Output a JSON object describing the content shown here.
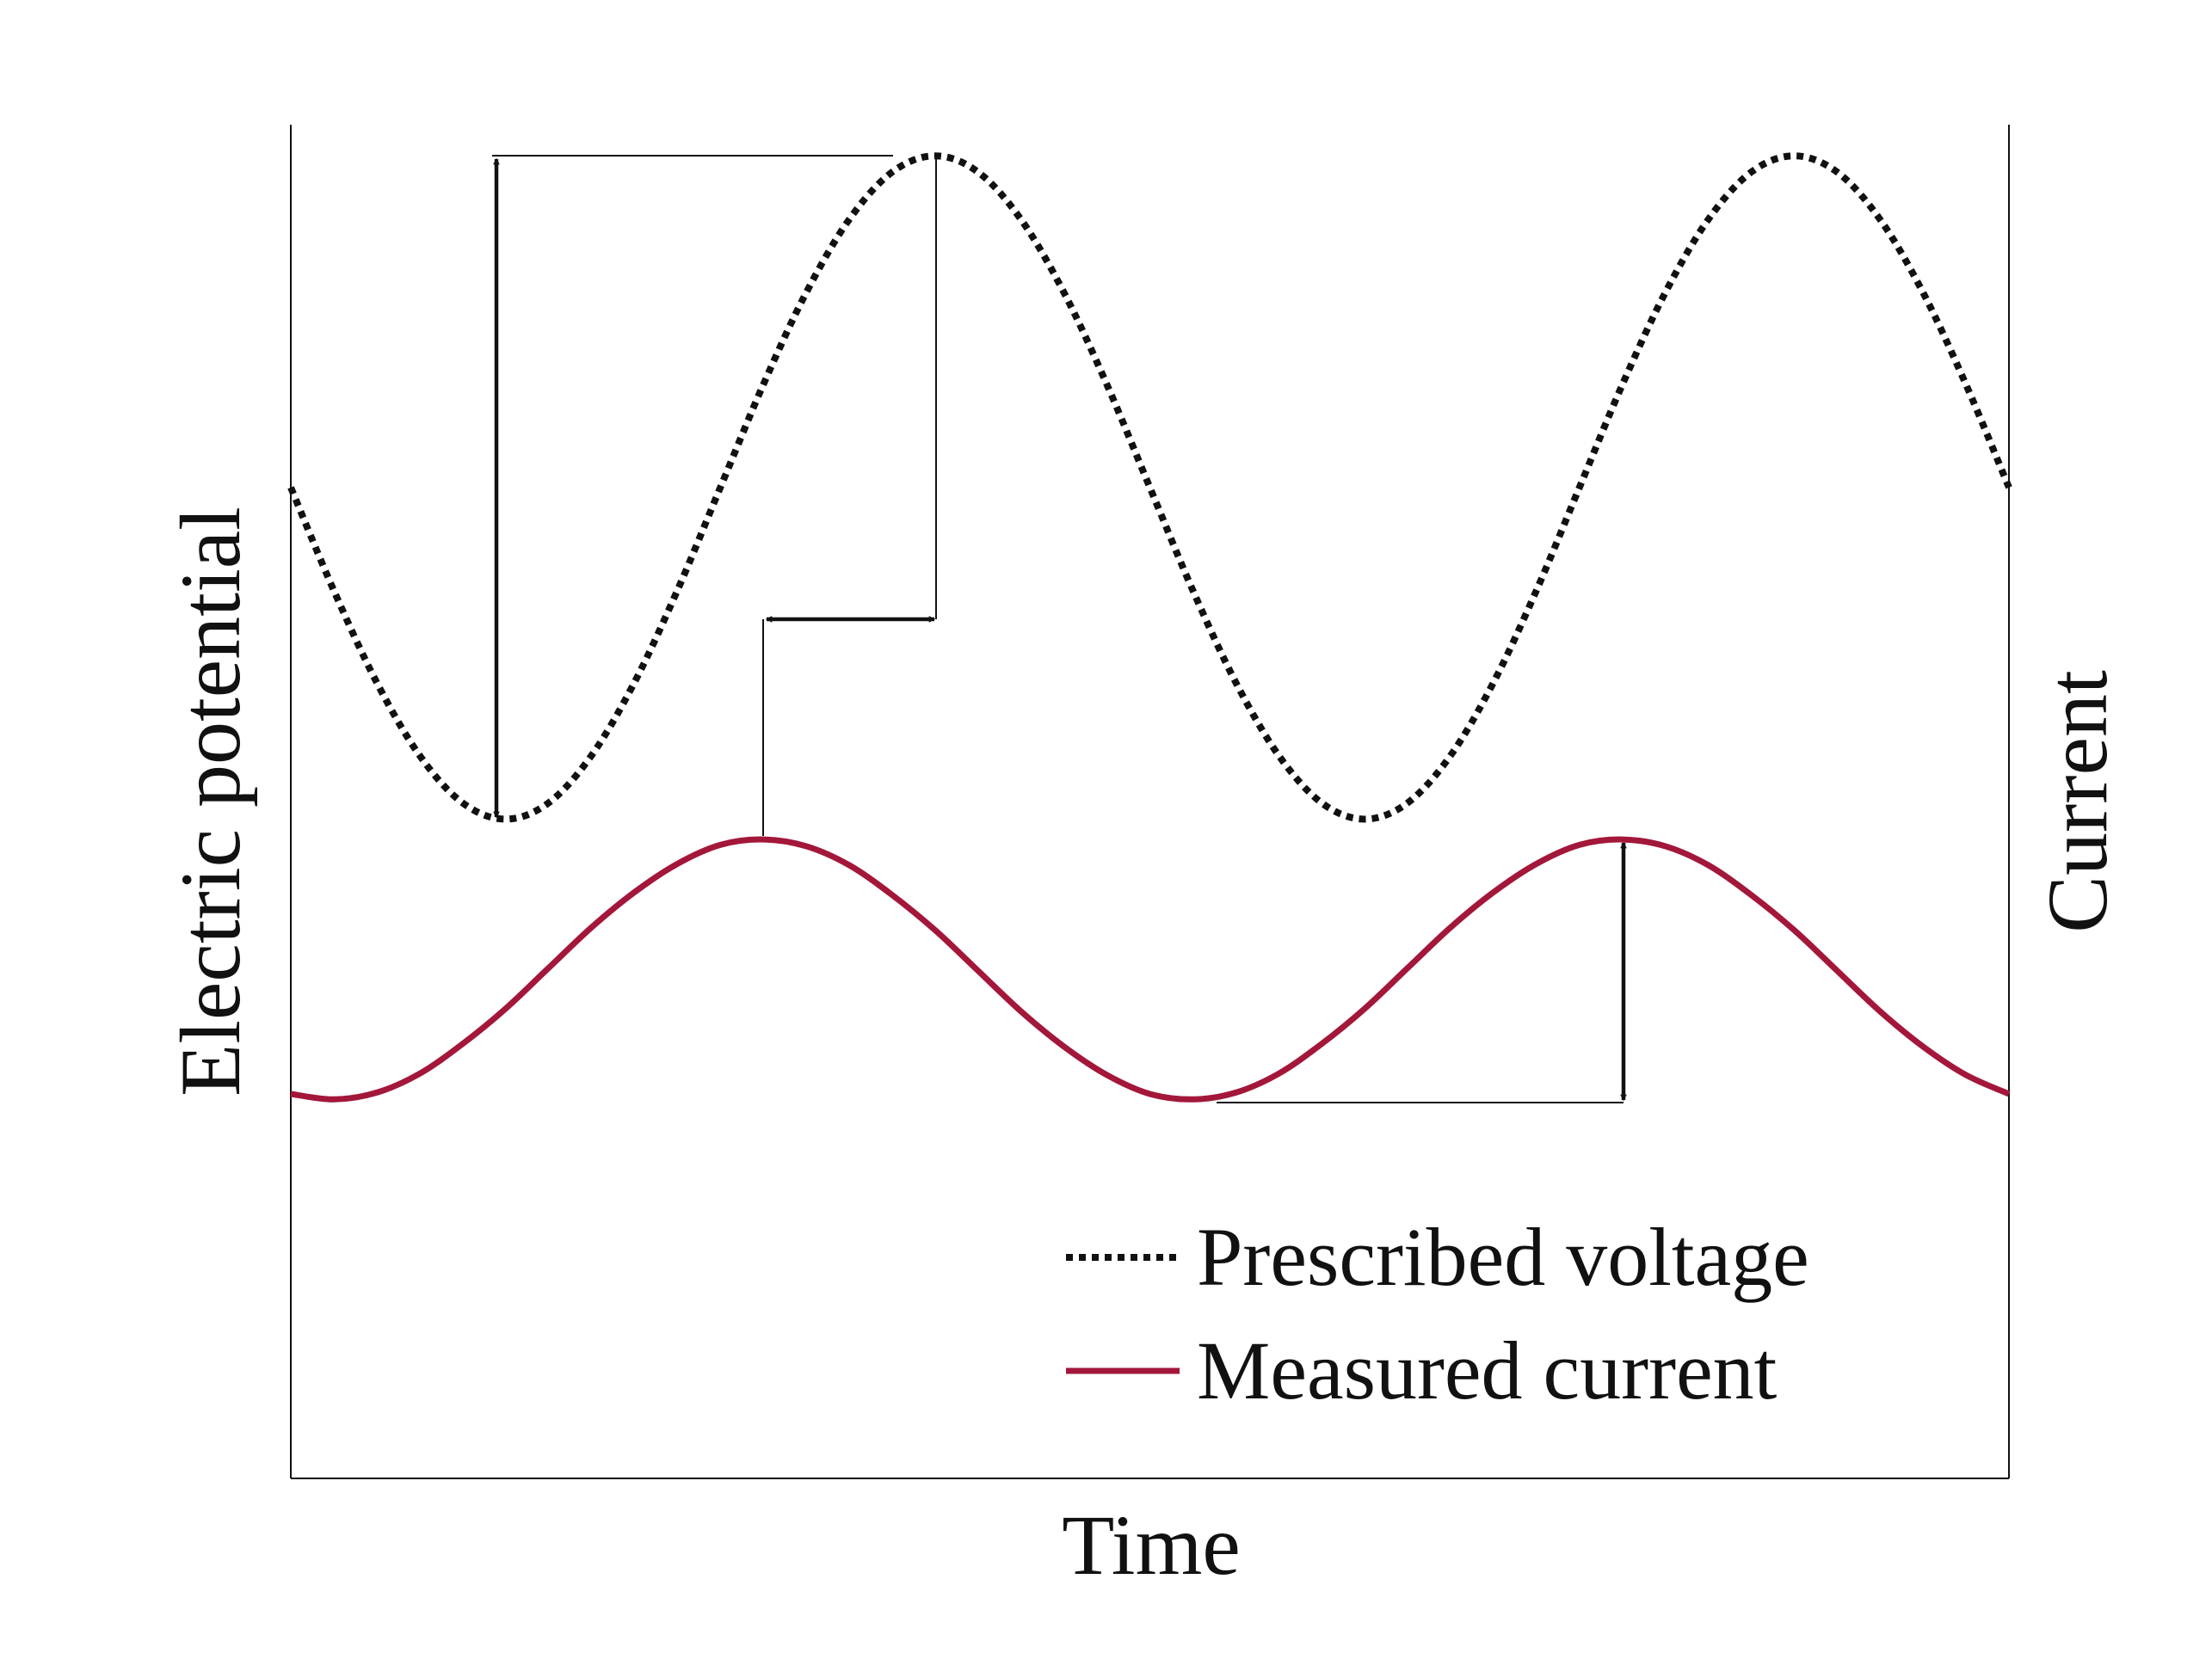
{
  "chart_data": {
    "type": "line",
    "xlabel": "Time",
    "ylabel": "Electric potential",
    "y2label": "Current",
    "x": [
      0,
      0.025,
      0.05,
      0.075,
      0.1,
      0.125,
      0.15,
      0.175,
      0.2,
      0.225,
      0.25,
      0.275,
      0.3,
      0.325,
      0.35,
      0.375,
      0.4,
      0.425,
      0.45,
      0.475,
      0.5,
      0.525,
      0.55,
      0.575,
      0.6,
      0.625,
      0.65,
      0.675,
      0.7,
      0.725,
      0.75,
      0.775,
      0.8,
      0.825,
      0.85,
      0.875,
      0.9,
      0.925,
      0.95,
      0.975,
      1
    ],
    "xlim": [
      0,
      1
    ],
    "ylim": [
      0,
      1
    ],
    "y2lim": [
      0,
      1
    ],
    "legend": "lower right",
    "series": [
      {
        "name": "Prescribed voltage",
        "color": "#111111",
        "style": "dotted",
        "values": [
          0.732,
          0.656,
          0.588,
          0.534,
          0.499,
          0.487,
          0.499,
          0.534,
          0.588,
          0.656,
          0.732,
          0.808,
          0.876,
          0.93,
          0.965,
          0.977,
          0.965,
          0.93,
          0.876,
          0.808,
          0.732,
          0.656,
          0.588,
          0.534,
          0.499,
          0.487,
          0.499,
          0.534,
          0.588,
          0.656,
          0.732,
          0.808,
          0.876,
          0.93,
          0.965,
          0.977,
          0.965,
          0.93,
          0.876,
          0.808,
          0.732
        ]
      },
      {
        "name": "Measured current",
        "color": "#a3173a",
        "style": "solid",
        "axis": "y2",
        "values": [
          0.284,
          0.28,
          0.285,
          0.299,
          0.321,
          0.347,
          0.377,
          0.407,
          0.433,
          0.454,
          0.468,
          0.472,
          0.467,
          0.453,
          0.431,
          0.405,
          0.375,
          0.345,
          0.319,
          0.298,
          0.284,
          0.28,
          0.285,
          0.299,
          0.321,
          0.347,
          0.377,
          0.407,
          0.433,
          0.454,
          0.468,
          0.472,
          0.467,
          0.453,
          0.431,
          0.405,
          0.375,
          0.345,
          0.319,
          0.298,
          0.284
        ]
      }
    ]
  }
}
